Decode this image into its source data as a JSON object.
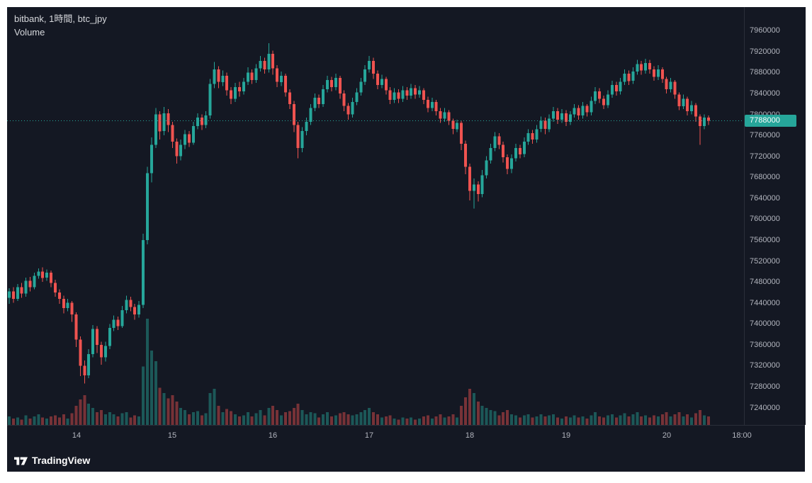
{
  "legend": {
    "title": "bitbank, 1時間, btc_jpy",
    "indicator": "Volume"
  },
  "colors": {
    "background": "#141823",
    "axis_line": "#2a2e39",
    "axis_text": "#b2b5be",
    "up": "#26a69a",
    "down": "#ef5350",
    "vol_up": "rgba(38,166,154,0.45)",
    "vol_down": "rgba(239,83,80,0.45)",
    "price_line": "#26a69a",
    "badge_bg": "#26a69a",
    "badge_text": "#ffffff"
  },
  "price_axis": {
    "labels": [
      "7960000",
      "7920000",
      "7880000",
      "7840000",
      "7800000",
      "7760000",
      "7720000",
      "7680000",
      "7640000",
      "7600000",
      "7560000",
      "7520000",
      "7480000",
      "7440000",
      "7400000",
      "7360000",
      "7320000",
      "7280000",
      "7240000"
    ],
    "current_label": "7788000"
  },
  "time_axis": {
    "labels": [
      {
        "label": "14",
        "i": 16
      },
      {
        "label": "15",
        "i": 39
      },
      {
        "label": "16",
        "i": 63
      },
      {
        "label": "17",
        "i": 86
      },
      {
        "label": "18",
        "i": 110
      },
      {
        "label": "19",
        "i": 133
      },
      {
        "label": "20",
        "i": 157
      },
      {
        "label": "18:00",
        "i": 175
      }
    ]
  },
  "footer": {
    "logo_text": "TradingView"
  },
  "chart_data": {
    "type": "candlestick",
    "exchange": "bitbank",
    "symbol": "btc_jpy",
    "interval": "1時間",
    "indicator": "Volume",
    "current_price": 7788000,
    "price_scale": {
      "min": 7207000,
      "max": 8005000,
      "tick": 40000
    },
    "unit": 1000,
    "note": "candles = [open,high,low,close,volume], hourly, prices in thousands of JPY, 13th 08:00 through 20th",
    "candles": [
      [
        7450,
        7468,
        7438,
        7462,
        8
      ],
      [
        7462,
        7470,
        7440,
        7448,
        6
      ],
      [
        7448,
        7476,
        7444,
        7470,
        7
      ],
      [
        7470,
        7478,
        7450,
        7458,
        5
      ],
      [
        7458,
        7488,
        7452,
        7482,
        9
      ],
      [
        7482,
        7490,
        7462,
        7470,
        6
      ],
      [
        7470,
        7498,
        7466,
        7492,
        8
      ],
      [
        7492,
        7506,
        7486,
        7500,
        10
      ],
      [
        7500,
        7508,
        7480,
        7488,
        7
      ],
      [
        7488,
        7504,
        7482,
        7498,
        6
      ],
      [
        7498,
        7502,
        7470,
        7478,
        8
      ],
      [
        7478,
        7484,
        7452,
        7460,
        9
      ],
      [
        7460,
        7466,
        7438,
        7448,
        7
      ],
      [
        7448,
        7454,
        7420,
        7430,
        10
      ],
      [
        7430,
        7448,
        7424,
        7440,
        6
      ],
      [
        7440,
        7444,
        7404,
        7418,
        11
      ],
      [
        7418,
        7422,
        7356,
        7370,
        18
      ],
      [
        7370,
        7376,
        7300,
        7320,
        24
      ],
      [
        7320,
        7330,
        7286,
        7302,
        28
      ],
      [
        7302,
        7352,
        7296,
        7342,
        20
      ],
      [
        7342,
        7398,
        7336,
        7390,
        16
      ],
      [
        7390,
        7396,
        7344,
        7360,
        12
      ],
      [
        7360,
        7366,
        7322,
        7336,
        14
      ],
      [
        7336,
        7366,
        7328,
        7358,
        10
      ],
      [
        7358,
        7400,
        7352,
        7392,
        12
      ],
      [
        7392,
        7416,
        7386,
        7408,
        10
      ],
      [
        7408,
        7414,
        7388,
        7396,
        8
      ],
      [
        7396,
        7434,
        7392,
        7426,
        11
      ],
      [
        7426,
        7454,
        7420,
        7446,
        12
      ],
      [
        7446,
        7452,
        7424,
        7432,
        7
      ],
      [
        7432,
        7438,
        7408,
        7418,
        9
      ],
      [
        7418,
        7444,
        7412,
        7436,
        8
      ],
      [
        7436,
        7572,
        7430,
        7560,
        55
      ],
      [
        7560,
        7700,
        7552,
        7688,
        100
      ],
      [
        7688,
        7756,
        7670,
        7742,
        70
      ],
      [
        7742,
        7812,
        7736,
        7800,
        60
      ],
      [
        7800,
        7806,
        7752,
        7768,
        35
      ],
      [
        7768,
        7814,
        7760,
        7802,
        30
      ],
      [
        7802,
        7810,
        7766,
        7780,
        25
      ],
      [
        7780,
        7786,
        7736,
        7748,
        28
      ],
      [
        7748,
        7754,
        7706,
        7720,
        22
      ],
      [
        7720,
        7752,
        7712,
        7742,
        16
      ],
      [
        7742,
        7770,
        7734,
        7762,
        14
      ],
      [
        7762,
        7768,
        7738,
        7746,
        10
      ],
      [
        7746,
        7786,
        7742,
        7778,
        12
      ],
      [
        7778,
        7802,
        7772,
        7794,
        13
      ],
      [
        7794,
        7800,
        7770,
        7780,
        9
      ],
      [
        7780,
        7806,
        7774,
        7798,
        11
      ],
      [
        7798,
        7868,
        7792,
        7858,
        30
      ],
      [
        7858,
        7900,
        7850,
        7886,
        34
      ],
      [
        7886,
        7892,
        7850,
        7862,
        18
      ],
      [
        7862,
        7884,
        7854,
        7874,
        12
      ],
      [
        7874,
        7880,
        7836,
        7846,
        15
      ],
      [
        7846,
        7852,
        7820,
        7830,
        13
      ],
      [
        7830,
        7860,
        7824,
        7852,
        10
      ],
      [
        7852,
        7862,
        7834,
        7844,
        8
      ],
      [
        7844,
        7870,
        7838,
        7862,
        9
      ],
      [
        7862,
        7890,
        7856,
        7880,
        12
      ],
      [
        7880,
        7886,
        7858,
        7866,
        8
      ],
      [
        7866,
        7896,
        7860,
        7888,
        11
      ],
      [
        7888,
        7912,
        7882,
        7902,
        14
      ],
      [
        7902,
        7908,
        7878,
        7886,
        9
      ],
      [
        7886,
        7936,
        7880,
        7916,
        16
      ],
      [
        7916,
        7922,
        7876,
        7888,
        18
      ],
      [
        7888,
        7894,
        7852,
        7862,
        14
      ],
      [
        7862,
        7882,
        7854,
        7874,
        9
      ],
      [
        7874,
        7878,
        7834,
        7842,
        12
      ],
      [
        7842,
        7848,
        7810,
        7820,
        13
      ],
      [
        7820,
        7826,
        7766,
        7780,
        16
      ],
      [
        7780,
        7786,
        7716,
        7736,
        20
      ],
      [
        7736,
        7776,
        7728,
        7768,
        14
      ],
      [
        7768,
        7794,
        7760,
        7786,
        10
      ],
      [
        7786,
        7820,
        7780,
        7812,
        12
      ],
      [
        7812,
        7840,
        7806,
        7832,
        11
      ],
      [
        7832,
        7838,
        7812,
        7820,
        7
      ],
      [
        7820,
        7856,
        7814,
        7848,
        10
      ],
      [
        7848,
        7874,
        7842,
        7866,
        12
      ],
      [
        7866,
        7872,
        7844,
        7852,
        8
      ],
      [
        7852,
        7878,
        7846,
        7870,
        9
      ],
      [
        7870,
        7874,
        7830,
        7840,
        11
      ],
      [
        7840,
        7846,
        7806,
        7816,
        12
      ],
      [
        7816,
        7822,
        7790,
        7800,
        10
      ],
      [
        7800,
        7832,
        7794,
        7824,
        9
      ],
      [
        7824,
        7850,
        7818,
        7842,
        10
      ],
      [
        7842,
        7870,
        7836,
        7862,
        12
      ],
      [
        7862,
        7894,
        7856,
        7886,
        14
      ],
      [
        7886,
        7912,
        7880,
        7902,
        16
      ],
      [
        7902,
        7908,
        7868,
        7878,
        12
      ],
      [
        7878,
        7884,
        7848,
        7856,
        10
      ],
      [
        7856,
        7876,
        7850,
        7868,
        7
      ],
      [
        7868,
        7872,
        7838,
        7846,
        8
      ],
      [
        7846,
        7852,
        7820,
        7828,
        9
      ],
      [
        7828,
        7850,
        7822,
        7842,
        6
      ],
      [
        7842,
        7848,
        7822,
        7830,
        5
      ],
      [
        7830,
        7854,
        7824,
        7846,
        7
      ],
      [
        7846,
        7852,
        7828,
        7836,
        6
      ],
      [
        7836,
        7858,
        7830,
        7850,
        7
      ],
      [
        7850,
        7856,
        7830,
        7838,
        5
      ],
      [
        7838,
        7854,
        7832,
        7846,
        6
      ],
      [
        7846,
        7850,
        7820,
        7828,
        8
      ],
      [
        7828,
        7834,
        7804,
        7812,
        9
      ],
      [
        7812,
        7832,
        7806,
        7824,
        6
      ],
      [
        7824,
        7828,
        7798,
        7806,
        8
      ],
      [
        7806,
        7812,
        7784,
        7792,
        10
      ],
      [
        7792,
        7812,
        7786,
        7804,
        7
      ],
      [
        7804,
        7808,
        7780,
        7788,
        8
      ],
      [
        7788,
        7792,
        7762,
        7772,
        10
      ],
      [
        7772,
        7790,
        7766,
        7784,
        7
      ],
      [
        7784,
        7788,
        7732,
        7744,
        18
      ],
      [
        7744,
        7750,
        7686,
        7700,
        26
      ],
      [
        7700,
        7706,
        7636,
        7654,
        34
      ],
      [
        7654,
        7678,
        7620,
        7666,
        30
      ],
      [
        7666,
        7672,
        7634,
        7648,
        22
      ],
      [
        7648,
        7694,
        7642,
        7684,
        18
      ],
      [
        7684,
        7720,
        7678,
        7712,
        16
      ],
      [
        7712,
        7744,
        7706,
        7736,
        14
      ],
      [
        7736,
        7766,
        7730,
        7758,
        13
      ],
      [
        7758,
        7764,
        7734,
        7742,
        9
      ],
      [
        7742,
        7748,
        7708,
        7718,
        12
      ],
      [
        7718,
        7724,
        7686,
        7696,
        14
      ],
      [
        7696,
        7724,
        7688,
        7716,
        10
      ],
      [
        7716,
        7744,
        7710,
        7736,
        9
      ],
      [
        7736,
        7742,
        7716,
        7724,
        7
      ],
      [
        7724,
        7756,
        7718,
        7748,
        9
      ],
      [
        7748,
        7772,
        7742,
        7764,
        10
      ],
      [
        7764,
        7770,
        7744,
        7752,
        7
      ],
      [
        7752,
        7780,
        7746,
        7772,
        8
      ],
      [
        7772,
        7796,
        7766,
        7788,
        10
      ],
      [
        7788,
        7794,
        7762,
        7772,
        8
      ],
      [
        7772,
        7800,
        7766,
        7792,
        9
      ],
      [
        7792,
        7814,
        7786,
        7806,
        10
      ],
      [
        7806,
        7812,
        7782,
        7790,
        7
      ],
      [
        7790,
        7810,
        7784,
        7802,
        6
      ],
      [
        7802,
        7808,
        7778,
        7786,
        8
      ],
      [
        7786,
        7806,
        7780,
        7800,
        7
      ],
      [
        7800,
        7820,
        7794,
        7812,
        9
      ],
      [
        7812,
        7818,
        7790,
        7798,
        7
      ],
      [
        7798,
        7824,
        7792,
        7816,
        8
      ],
      [
        7816,
        7820,
        7796,
        7804,
        6
      ],
      [
        7804,
        7834,
        7798,
        7826,
        9
      ],
      [
        7826,
        7852,
        7820,
        7844,
        12
      ],
      [
        7844,
        7850,
        7822,
        7830,
        8
      ],
      [
        7830,
        7836,
        7810,
        7818,
        7
      ],
      [
        7818,
        7846,
        7812,
        7838,
        9
      ],
      [
        7838,
        7864,
        7832,
        7856,
        10
      ],
      [
        7856,
        7862,
        7836,
        7844,
        7
      ],
      [
        7844,
        7870,
        7838,
        7862,
        9
      ],
      [
        7862,
        7886,
        7856,
        7878,
        11
      ],
      [
        7878,
        7884,
        7856,
        7864,
        8
      ],
      [
        7864,
        7890,
        7858,
        7882,
        10
      ],
      [
        7882,
        7904,
        7876,
        7896,
        12
      ],
      [
        7896,
        7902,
        7876,
        7884,
        8
      ],
      [
        7884,
        7906,
        7878,
        7898,
        9
      ],
      [
        7898,
        7904,
        7878,
        7886,
        7
      ],
      [
        7886,
        7892,
        7864,
        7872,
        9
      ],
      [
        7872,
        7894,
        7866,
        7886,
        8
      ],
      [
        7886,
        7890,
        7860,
        7868,
        10
      ],
      [
        7868,
        7872,
        7840,
        7848,
        12
      ],
      [
        7848,
        7870,
        7842,
        7862,
        8
      ],
      [
        7862,
        7866,
        7830,
        7838,
        10
      ],
      [
        7838,
        7842,
        7808,
        7816,
        12
      ],
      [
        7816,
        7838,
        7810,
        7830,
        8
      ],
      [
        7830,
        7834,
        7798,
        7806,
        10
      ],
      [
        7806,
        7826,
        7800,
        7818,
        7
      ],
      [
        7818,
        7822,
        7786,
        7796,
        11
      ],
      [
        7796,
        7800,
        7742,
        7778,
        14
      ],
      [
        7778,
        7800,
        7772,
        7794,
        9
      ],
      [
        7794,
        7798,
        7780,
        7788,
        8
      ]
    ]
  }
}
